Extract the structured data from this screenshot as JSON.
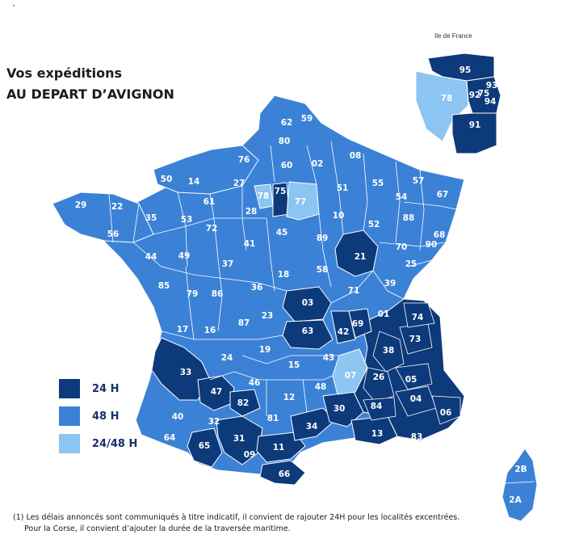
{
  "title": {
    "line1": "Vos expéditions",
    "line2": "AU DEPART D’AVIGNON"
  },
  "inset": {
    "label": "Ile de France"
  },
  "colors": {
    "h24": "#0d3a7a",
    "h48": "#3b82d6",
    "h2448": "#8cc4f2",
    "border": "#ffffff"
  },
  "legend": [
    {
      "label": "24 H",
      "color_key": "h24"
    },
    {
      "label": "48 H",
      "color_key": "h48"
    },
    {
      "label": "24/48 H",
      "color_key": "h2448"
    }
  ],
  "departments_24h": [
    "03",
    "63",
    "42",
    "69",
    "21",
    "38",
    "73",
    "74",
    "26",
    "05",
    "04",
    "06",
    "84",
    "83",
    "13",
    "30",
    "34",
    "11",
    "66",
    "31",
    "65",
    "82",
    "47",
    "33",
    "75",
    "92",
    "93",
    "94",
    "95",
    "91"
  ],
  "departments_48h": [
    "62",
    "59",
    "80",
    "02",
    "08",
    "76",
    "60",
    "27",
    "14",
    "50",
    "29",
    "22",
    "35",
    "56",
    "44",
    "53",
    "61",
    "72",
    "28",
    "41",
    "45",
    "89",
    "10",
    "51",
    "55",
    "54",
    "57",
    "67",
    "68",
    "88",
    "52",
    "70",
    "90",
    "25",
    "39",
    "01",
    "71",
    "58",
    "18",
    "36",
    "37",
    "49",
    "85",
    "79",
    "86",
    "17",
    "16",
    "87",
    "23",
    "19",
    "15",
    "43",
    "48",
    "12",
    "46",
    "24",
    "40",
    "64",
    "32",
    "81",
    "09",
    "2B",
    "2A"
  ],
  "departments_2448h": [
    "77",
    "78",
    "07"
  ],
  "footnote": {
    "line1": "(1) Les délais annoncés sont communiqués à titre indicatif, il convient de rajouter 24H pour les localités excentrées.",
    "line2": "Pour la Corse, il convient d’ajouter la durée de la traversée maritime."
  },
  "labels": {
    "d62": "62",
    "d59": "59",
    "d80": "80",
    "d02": "02",
    "d08": "08",
    "d76": "76",
    "d60": "60",
    "d27": "27",
    "d14": "14",
    "d50": "50",
    "d29": "29",
    "d22": "22",
    "d35": "35",
    "d56": "56",
    "d44": "44",
    "d53": "53",
    "d61": "61",
    "d72": "72",
    "d28": "28",
    "d41": "41",
    "d45": "45",
    "d89": "89",
    "d10": "10",
    "d51": "51",
    "d55": "55",
    "d54": "54",
    "d57": "57",
    "d67": "67",
    "d68": "68",
    "d88": "88",
    "d52": "52",
    "d70": "70",
    "d90": "90",
    "d25": "25",
    "d39": "39",
    "d01": "01",
    "d71": "71",
    "d58": "58",
    "d18": "18",
    "d36": "36",
    "d37": "37",
    "d49": "49",
    "d85": "85",
    "d79": "79",
    "d86": "86",
    "d17": "17",
    "d16": "16",
    "d87": "87",
    "d23": "23",
    "d19": "19",
    "d15": "15",
    "d43": "43",
    "d48": "48",
    "d12": "12",
    "d46": "46",
    "d24": "24",
    "d40": "40",
    "d64": "64",
    "d32": "32",
    "d81": "81",
    "d09": "09",
    "d03": "03",
    "d63": "63",
    "d42": "42",
    "d69": "69",
    "d21": "21",
    "d38": "38",
    "d73": "73",
    "d74": "74",
    "d26": "26",
    "d05": "05",
    "d04": "04",
    "d06": "06",
    "d84": "84",
    "d83": "83",
    "d13": "13",
    "d30": "30",
    "d34": "34",
    "d11": "11",
    "d66": "66",
    "d31": "31",
    "d65": "65",
    "d82": "82",
    "d47": "47",
    "d33": "33",
    "d75": "75",
    "d77": "77",
    "d78": "78",
    "d07": "07",
    "d2B": "2B",
    "d2A": "2A",
    "i95": "95",
    "i93": "93",
    "i92": "92",
    "i75": "75",
    "i94": "94",
    "i78": "78",
    "i91": "91"
  }
}
